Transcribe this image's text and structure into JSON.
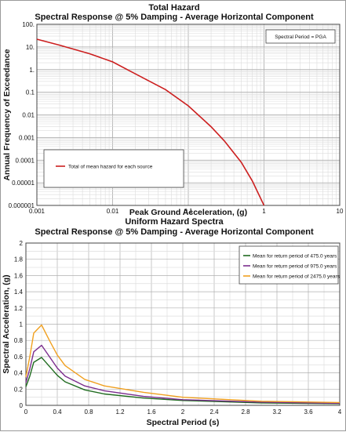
{
  "chart_data": [
    {
      "type": "line",
      "title": "Total Hazard",
      "subtitle": "Spectral Response @ 5% Damping - Average Horizontal Component",
      "xlabel": "Peak Ground Acceleration, (g)",
      "ylabel": "Annual Frequency of Exceedance",
      "xscale": "log",
      "yscale": "log",
      "xlim": [
        0.001,
        10
      ],
      "ylim": [
        1e-06,
        100
      ],
      "x_ticks": [
        "0.001",
        "0.01",
        "0.1",
        "1",
        "10"
      ],
      "y_ticks": [
        "100.",
        "10.",
        "1.",
        "0.1",
        "0.01",
        "0.001",
        "0.0001",
        "0.00001",
        "0.000001"
      ],
      "grid": true,
      "annotation": "Spectral Period = PGA",
      "legend_position": "bottom-left",
      "series": [
        {
          "name": "Total of mean hazard for each source",
          "color": "#cc1f1f",
          "x": [
            0.001,
            0.002,
            0.005,
            0.01,
            0.02,
            0.05,
            0.1,
            0.2,
            0.3,
            0.5,
            0.7,
            1.0
          ],
          "y": [
            22,
            12,
            5,
            2.2,
            0.65,
            0.13,
            0.025,
            0.003,
            0.0007,
            8e-05,
            1.2e-05,
            1e-06
          ]
        }
      ]
    },
    {
      "type": "line",
      "title": "Uniform Hazard Spectra",
      "subtitle": "Spectral Response @ 5% Damping - Average Horizontal Component",
      "xlabel": "Spectral Period (s)",
      "ylabel": "Spectral Acceleration, (g)",
      "xlim": [
        0,
        4
      ],
      "ylim": [
        0,
        2
      ],
      "x_ticks": [
        "0",
        "0.4",
        "0.8",
        "1.2",
        "1.6",
        "2",
        "2.4",
        "2.8",
        "3.2",
        "3.6",
        "4"
      ],
      "y_ticks": [
        "0",
        "0.2",
        "0.4",
        "0.6",
        "0.8",
        "1",
        "1.2",
        "1.4",
        "1.6",
        "1.8",
        "2"
      ],
      "grid": true,
      "legend_position": "top-right",
      "x": [
        0,
        0.05,
        0.1,
        0.2,
        0.3,
        0.4,
        0.5,
        0.75,
        1.0,
        1.5,
        2.0,
        3.0,
        4.0
      ],
      "series": [
        {
          "name": "Mean for return period of 475.0 years",
          "color": "#1f6b1f",
          "values": [
            0.23,
            0.36,
            0.53,
            0.59,
            0.48,
            0.37,
            0.29,
            0.19,
            0.14,
            0.09,
            0.06,
            0.03,
            0.02
          ]
        },
        {
          "name": "Mean for return period of 975.0 years",
          "color": "#7b2d8e",
          "values": [
            0.28,
            0.45,
            0.66,
            0.74,
            0.6,
            0.46,
            0.36,
            0.24,
            0.18,
            0.11,
            0.07,
            0.04,
            0.025
          ]
        },
        {
          "name": "Mean for return period of 2475.0 years",
          "color": "#f0a020",
          "values": [
            0.35,
            0.6,
            0.89,
            0.99,
            0.8,
            0.62,
            0.49,
            0.32,
            0.24,
            0.16,
            0.1,
            0.05,
            0.035
          ]
        }
      ]
    }
  ]
}
